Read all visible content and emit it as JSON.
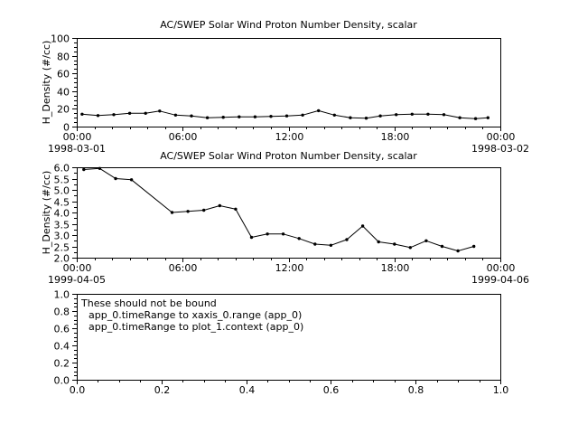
{
  "window": {
    "background": "#ffffff",
    "foreground": "#000000"
  },
  "chart_data": [
    {
      "type": "line",
      "title": "AC/SWEP  Solar Wind Proton Number Density, scalar",
      "ylabel": "H_Density (#/cc)",
      "ylim": [
        0,
        100
      ],
      "yticks": [
        0,
        20,
        40,
        60,
        80,
        100
      ],
      "ytick_labels": [
        "0",
        "20",
        "40",
        "60",
        "80",
        "100"
      ],
      "y_minor_step": 5,
      "xlim": [
        0,
        24
      ],
      "xticks": [
        0,
        6,
        12,
        18,
        24
      ],
      "xtick_labels": [
        "00:00",
        "06:00",
        "12:00",
        "18:00",
        "00:00"
      ],
      "x_minor_step": 1,
      "start_date": "1998-03-01",
      "end_date": "1998-03-02",
      "grid": false,
      "line_color": "#000000",
      "marker": "dot",
      "x": [
        0.3,
        1.2,
        2.1,
        3.0,
        3.9,
        4.7,
        5.6,
        6.5,
        7.4,
        8.3,
        9.2,
        10.1,
        11.0,
        11.9,
        12.8,
        13.7,
        14.6,
        15.5,
        16.4,
        17.2,
        18.1,
        19.0,
        19.9,
        20.8,
        21.7,
        22.6,
        23.3
      ],
      "y": [
        14,
        12.5,
        13.5,
        15,
        15,
        17.5,
        13,
        12,
        10,
        10.5,
        11,
        11,
        11.5,
        12,
        13,
        18,
        13,
        10,
        9.5,
        12,
        13.5,
        14,
        14,
        13.5,
        10,
        9,
        10
      ],
      "annotations": []
    },
    {
      "type": "line",
      "title": "AC/SWEP  Solar Wind Proton Number Density, scalar",
      "ylabel": "H_Density (#/cc)",
      "ylim": [
        2.0,
        6.0
      ],
      "yticks": [
        2.0,
        2.5,
        3.0,
        3.5,
        4.0,
        4.5,
        5.0,
        5.5,
        6.0
      ],
      "ytick_labels": [
        "2.0",
        "2.5",
        "3.0",
        "3.5",
        "4.0",
        "4.5",
        "5.0",
        "5.5",
        "6.0"
      ],
      "y_minor_step": 0.25,
      "xlim": [
        0,
        24
      ],
      "xticks": [
        0,
        6,
        12,
        18,
        24
      ],
      "xtick_labels": [
        "00:00",
        "06:00",
        "12:00",
        "18:00",
        "00:00"
      ],
      "x_minor_step": 1,
      "start_date": "1999-04-05",
      "end_date": "1999-04-06",
      "grid": false,
      "line_color": "#000000",
      "marker": "dot",
      "x": [
        0.4,
        1.3,
        2.2,
        3.1,
        5.4,
        6.3,
        7.2,
        8.1,
        9.0,
        9.9,
        10.8,
        11.7,
        12.6,
        13.5,
        14.4,
        15.3,
        16.2,
        17.1,
        18.0,
        18.9,
        19.8,
        20.7,
        21.6,
        22.5
      ],
      "y": [
        5.9,
        5.95,
        5.5,
        5.45,
        4.0,
        4.05,
        4.1,
        4.3,
        4.15,
        2.9,
        3.05,
        3.05,
        2.85,
        2.6,
        2.55,
        2.8,
        3.4,
        2.7,
        2.6,
        2.45,
        2.75,
        2.5,
        2.3,
        2.5
      ],
      "annotations": []
    },
    {
      "type": "line",
      "title": "",
      "ylabel": "",
      "ylim": [
        0,
        1
      ],
      "yticks": [
        0,
        0.2,
        0.4,
        0.6,
        0.8,
        1.0
      ],
      "ytick_labels": [
        "0.0",
        "0.2",
        "0.4",
        "0.6",
        "0.8",
        "1.0"
      ],
      "y_minor_step": 0.05,
      "xlim": [
        0,
        1
      ],
      "xticks": [
        0,
        0.2,
        0.4,
        0.6,
        0.8,
        1.0
      ],
      "xtick_labels": [
        "0.0",
        "0.2",
        "0.4",
        "0.6",
        "0.8",
        "1.0"
      ],
      "x_minor_step": 0.05,
      "start_date": "",
      "end_date": "",
      "grid": false,
      "line_color": "#000000",
      "marker": "none",
      "x": [],
      "y": [],
      "annotations": [
        "These should not be bound",
        "app_0.timeRange to xaxis_0.range (app_0)",
        "app_0.timeRange to plot_1.context (app_0)"
      ]
    }
  ]
}
